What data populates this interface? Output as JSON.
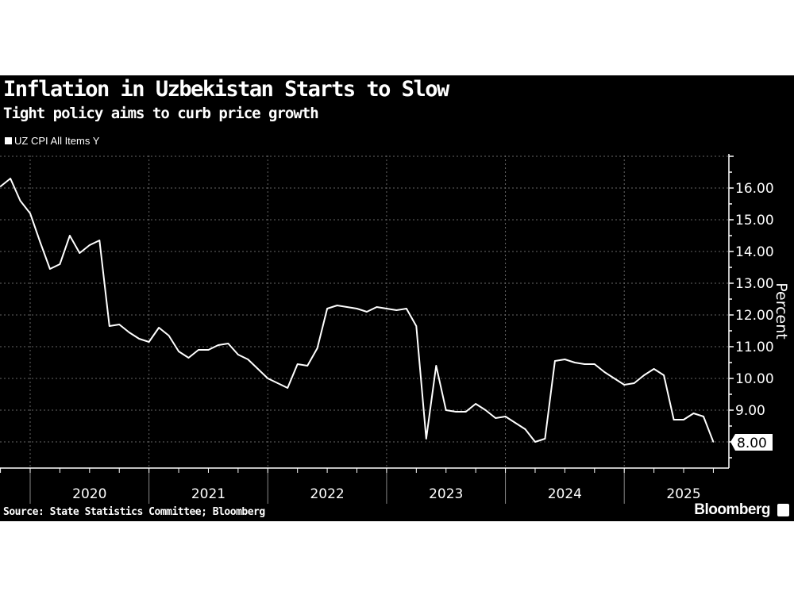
{
  "chart_data": {
    "type": "line",
    "title": "Inflation in Uzbekistan Starts to Slow",
    "subtitle": "Tight policy aims to curb price growth",
    "legend": [
      "UZ CPI All Items Y"
    ],
    "legend_position": "top-left",
    "ylabel": "Percent",
    "xlabel": "",
    "ylim": [
      7.2,
      17.0
    ],
    "y_ticks": [
      "16.00",
      "15.00",
      "14.00",
      "13.00",
      "12.00",
      "11.00",
      "10.00",
      "9.00"
    ],
    "last_value_label": "8.00",
    "x_tick_labels": [
      "2020",
      "2021",
      "2022",
      "2023",
      "2024",
      "2025"
    ],
    "grid": true,
    "x_start": "2019-10",
    "frequency": "monthly",
    "series": [
      {
        "name": "UZ CPI All Items Y",
        "color": "#ffffff",
        "values": [
          16.05,
          16.3,
          15.6,
          15.2,
          14.3,
          13.45,
          13.6,
          14.5,
          13.95,
          14.2,
          14.35,
          11.65,
          11.7,
          11.45,
          11.25,
          11.15,
          11.6,
          11.35,
          10.85,
          10.65,
          10.9,
          10.9,
          11.05,
          11.1,
          10.75,
          10.6,
          10.3,
          10.0,
          9.85,
          9.7,
          10.45,
          10.4,
          10.95,
          12.2,
          12.3,
          12.25,
          12.2,
          12.1,
          12.25,
          12.2,
          12.15,
          12.2,
          11.65,
          8.1,
          10.4,
          9.0,
          8.95,
          8.95,
          9.2,
          9.0,
          8.75,
          8.8,
          8.6,
          8.4,
          8.0,
          8.1,
          10.55,
          10.6,
          10.5,
          10.45,
          10.45,
          10.2,
          10.0,
          9.8,
          9.85,
          10.1,
          10.3,
          10.1,
          8.7,
          8.7,
          8.9,
          8.8,
          8.0
        ]
      }
    ]
  },
  "footer": {
    "source": "Source: State Statistics Committee; Bloomberg",
    "brand": "Bloomberg"
  }
}
